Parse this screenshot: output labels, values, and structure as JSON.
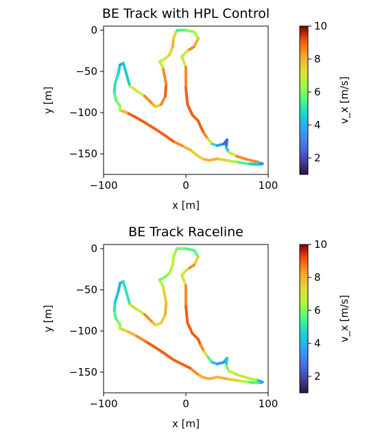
{
  "chart_data": [
    {
      "type": "scatter",
      "title": "BE Track with HPL Control",
      "xlabel": "x [m]",
      "ylabel": "y [m]",
      "colorbar_label": "v_x [m/s]",
      "xlim": [
        -100,
        100
      ],
      "ylim": [
        -175,
        5
      ],
      "xticks": [
        -100,
        0,
        100
      ],
      "yticks": [
        0,
        -50,
        -100,
        -150
      ],
      "colorbar_range": [
        1,
        10
      ],
      "colorbar_ticks": [
        2,
        4,
        6,
        8,
        10
      ],
      "colormap": "turbo",
      "track": {
        "x": [
          -10,
          0,
          10,
          15,
          10,
          2,
          -5,
          0,
          0,
          2,
          8,
          15,
          18,
          22,
          27,
          32,
          38,
          46,
          50,
          49,
          52,
          62,
          75,
          88,
          93,
          88,
          75,
          62,
          50,
          38,
          28,
          20,
          14,
          5,
          -5,
          -15,
          -25,
          -37,
          -50,
          -62,
          -72,
          -80,
          -80,
          -85,
          -87,
          -86,
          -82,
          -80,
          -76,
          -68,
          -50,
          -40,
          -37,
          -30,
          -25,
          -24,
          -28,
          -32,
          -26,
          -20,
          -16,
          -15,
          -12,
          -10
        ],
        "y": [
          0,
          0,
          -2,
          -10,
          -20,
          -25,
          -32,
          -45,
          -70,
          -90,
          -103,
          -110,
          -117,
          -125,
          -132,
          -138,
          -140,
          -138,
          -133,
          -142,
          -148,
          -153,
          -157,
          -160,
          -162,
          -163,
          -162,
          -160,
          -158,
          -156,
          -158,
          -156,
          -152,
          -145,
          -140,
          -135,
          -128,
          -120,
          -112,
          -105,
          -100,
          -97,
          -92,
          -85,
          -75,
          -65,
          -52,
          -42,
          -40,
          -68,
          -80,
          -90,
          -93,
          -90,
          -80,
          -65,
          -45,
          -38,
          -35,
          -30,
          -20,
          -10,
          -2,
          0
        ],
        "speed": [
          5,
          6,
          6,
          7,
          9,
          8,
          6,
          8,
          9,
          9,
          9,
          9,
          9,
          9,
          8,
          6,
          4,
          3,
          2,
          3,
          6,
          8,
          9,
          8,
          2,
          4,
          5,
          6,
          7,
          8,
          8,
          8,
          7,
          8,
          8,
          9,
          9,
          9,
          9,
          9,
          9,
          7,
          6,
          6,
          5,
          5,
          5,
          4,
          3,
          6,
          8,
          9,
          7,
          8,
          9,
          9,
          8,
          6,
          7,
          7,
          8,
          8,
          7,
          5
        ]
      }
    },
    {
      "type": "scatter",
      "title": "BE Track Raceline",
      "xlabel": "x [m]",
      "ylabel": "y [m]",
      "colorbar_label": "v_x [m/s]",
      "xlim": [
        -100,
        100
      ],
      "ylim": [
        -175,
        5
      ],
      "xticks": [
        -100,
        0,
        100
      ],
      "yticks": [
        0,
        -50,
        -100,
        -150
      ],
      "colorbar_range": [
        1,
        10
      ],
      "colorbar_ticks": [
        2,
        4,
        6,
        8,
        10
      ],
      "colormap": "turbo",
      "track": {
        "x": [
          -10,
          0,
          10,
          15,
          10,
          2,
          -5,
          0,
          0,
          2,
          8,
          15,
          18,
          22,
          27,
          32,
          38,
          46,
          50,
          49,
          52,
          62,
          75,
          88,
          93,
          88,
          75,
          62,
          50,
          38,
          28,
          20,
          14,
          5,
          -5,
          -15,
          -25,
          -37,
          -50,
          -62,
          -72,
          -80,
          -80,
          -85,
          -87,
          -86,
          -82,
          -80,
          -76,
          -68,
          -50,
          -40,
          -37,
          -30,
          -25,
          -24,
          -28,
          -32,
          -26,
          -20,
          -16,
          -15,
          -12,
          -10
        ],
        "y": [
          0,
          0,
          -2,
          -10,
          -20,
          -25,
          -32,
          -45,
          -70,
          -90,
          -103,
          -110,
          -117,
          -125,
          -132,
          -138,
          -140,
          -138,
          -133,
          -142,
          -148,
          -153,
          -157,
          -160,
          -162,
          -163,
          -162,
          -160,
          -158,
          -156,
          -158,
          -156,
          -152,
          -145,
          -140,
          -135,
          -128,
          -120,
          -112,
          -105,
          -100,
          -97,
          -92,
          -85,
          -75,
          -65,
          -52,
          -42,
          -40,
          -68,
          -80,
          -90,
          -93,
          -90,
          -80,
          -65,
          -45,
          -38,
          -35,
          -30,
          -20,
          -10,
          -2,
          0
        ],
        "speed": [
          6,
          6,
          5,
          6,
          9,
          8,
          6,
          8,
          9,
          9,
          9,
          9,
          9,
          8,
          6,
          5,
          4,
          3,
          4,
          5,
          7,
          7,
          7,
          6,
          2,
          5,
          6,
          7,
          8,
          8,
          8,
          8,
          8,
          9,
          9,
          9,
          9,
          9,
          9,
          8,
          8,
          7,
          6,
          6,
          5,
          5,
          4,
          4,
          4,
          6,
          8,
          9,
          7,
          7,
          8,
          8,
          7,
          6,
          6,
          6,
          7,
          7,
          6,
          6
        ]
      }
    }
  ]
}
